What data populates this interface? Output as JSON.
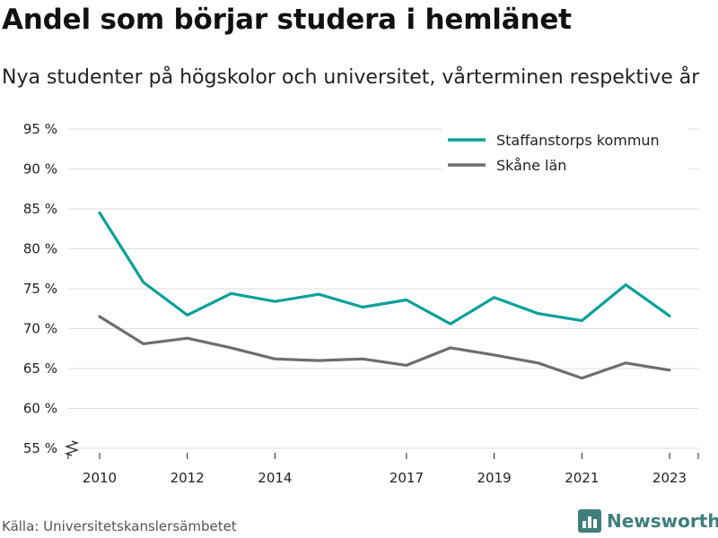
{
  "header": {
    "title": "Andel som börjar studera i hemlänet",
    "subtitle": "Nya studenter på högskolor och universitet, vårterminen respektive år"
  },
  "footer": {
    "source": "Källa: Universitetskanslersämbetet",
    "brand": "Newsworthy"
  },
  "icons": {
    "brand_logo": "bar-chart-logo-icon",
    "axis_break": "axis-break-icon"
  },
  "chart_data": {
    "type": "line",
    "x": [
      2010,
      2011,
      2012,
      2013,
      2014,
      2015,
      2016,
      2017,
      2018,
      2019,
      2020,
      2021,
      2022,
      2023
    ],
    "xticks": [
      "2010",
      "2012",
      "2014",
      "2017",
      "2019",
      "2021",
      "2023"
    ],
    "yticks": [
      55,
      60,
      65,
      70,
      75,
      80,
      85,
      90,
      95
    ],
    "ytick_labels": [
      "55 %",
      "60 %",
      "65 %",
      "70 %",
      "75 %",
      "80 %",
      "85 %",
      "90 %",
      "95 %"
    ],
    "ylim": [
      55,
      95
    ],
    "grid": true,
    "legend_position": "top-right",
    "series": [
      {
        "name": "Staffanstorps kommun",
        "color": "#0aa199",
        "values": [
          84.5,
          75.8,
          71.7,
          74.4,
          73.4,
          74.3,
          72.7,
          73.6,
          70.6,
          73.9,
          71.9,
          71.0,
          75.5,
          71.6
        ]
      },
      {
        "name": "Skåne län",
        "color": "#6d6d72",
        "values": [
          71.5,
          68.1,
          68.8,
          67.6,
          66.2,
          66.0,
          66.2,
          65.4,
          67.6,
          66.7,
          65.7,
          63.8,
          65.7,
          64.8
        ]
      }
    ]
  }
}
